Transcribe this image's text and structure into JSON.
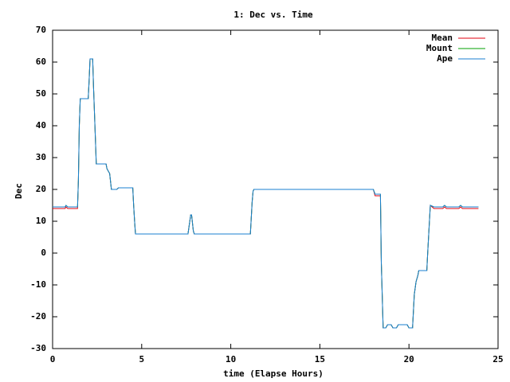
{
  "chart_data": {
    "type": "line",
    "title": "1: Dec vs. Time",
    "x_label": "time (Elapse Hours)",
    "y_label": "Dec",
    "x": [
      0,
      0.7,
      0.75,
      0.85,
      1.4,
      1.45,
      1.5,
      1.55,
      2.0,
      2.05,
      2.1,
      2.25,
      2.3,
      2.4,
      2.45,
      3.0,
      3.05,
      3.2,
      3.3,
      3.6,
      3.7,
      4.5,
      4.55,
      4.6,
      4.65,
      7.6,
      7.75,
      7.8,
      7.9,
      7.95,
      11.1,
      11.2,
      11.25,
      11.3,
      18.0,
      18.1,
      18.4,
      18.45,
      18.55,
      18.7,
      18.8,
      19.0,
      19.1,
      19.3,
      19.4,
      19.9,
      20.0,
      20.2,
      20.3,
      20.4,
      20.5,
      20.55,
      21.0,
      21.05,
      21.2,
      21.4,
      21.9,
      22.0,
      22.1,
      22.8,
      22.9,
      23.0,
      23.9
    ],
    "series": [
      {
        "name": "Mean",
        "color": "#e0000f",
        "values": [
          14,
          14,
          14.5,
          14,
          14,
          23,
          40,
          48.5,
          48.5,
          54,
          61,
          61,
          52,
          36,
          28,
          28,
          26.5,
          25,
          20,
          20,
          20.5,
          20.5,
          15,
          10,
          6,
          6,
          12,
          12,
          7,
          6,
          6,
          16,
          19.5,
          20,
          20,
          18,
          18,
          -3,
          -23.5,
          -23.5,
          -22.5,
          -22.5,
          -23.5,
          -23.5,
          -22.5,
          -22.5,
          -23.5,
          -23.5,
          -13,
          -9,
          -7,
          -5.5,
          -5.5,
          0,
          15,
          14,
          14,
          14.5,
          14,
          14,
          14.5,
          14,
          14
        ]
      },
      {
        "name": "Mount",
        "color": "#00a000",
        "values": [
          14.5,
          14.5,
          15,
          14.5,
          14.5,
          23,
          40,
          48.5,
          48.5,
          54,
          61,
          61,
          52,
          36,
          28,
          28,
          26.5,
          25,
          20,
          20,
          20.5,
          20.5,
          15,
          10,
          6,
          6,
          12,
          12,
          7,
          6,
          6,
          16,
          19.5,
          20,
          20,
          18.5,
          18.5,
          -3,
          -23.5,
          -23.5,
          -22.5,
          -22.5,
          -23.5,
          -23.5,
          -22.5,
          -22.5,
          -23.5,
          -23.5,
          -13,
          -9,
          -7,
          -5.5,
          -5.5,
          0,
          15,
          14.5,
          14.5,
          15,
          14.5,
          14.5,
          15,
          14.5,
          14.5
        ]
      },
      {
        "name": "Ape",
        "color": "#1a7fd0",
        "values": [
          14.5,
          14.5,
          15,
          14.5,
          14.5,
          23,
          40,
          48.5,
          48.5,
          54,
          61,
          61,
          52,
          36,
          28,
          28,
          26.5,
          25,
          20,
          20,
          20.5,
          20.5,
          15,
          10,
          6,
          6,
          12,
          12,
          7,
          6,
          6,
          16,
          19.5,
          20,
          20,
          18.5,
          18.5,
          -3,
          -23.5,
          -23.5,
          -22.5,
          -22.5,
          -23.5,
          -23.5,
          -22.5,
          -22.5,
          -23.5,
          -23.5,
          -13,
          -9,
          -7,
          -5.5,
          -5.5,
          0,
          15,
          14.5,
          14.5,
          15,
          14.5,
          14.5,
          15,
          14.5,
          14.5
        ]
      }
    ],
    "xlim": [
      0,
      25
    ],
    "xticks": [
      0,
      5,
      10,
      15,
      20,
      25
    ],
    "ylim": [
      -30,
      70
    ],
    "yticks": [
      -30,
      -20,
      -10,
      0,
      10,
      20,
      30,
      40,
      50,
      60,
      70
    ],
    "legend": "top-right"
  }
}
